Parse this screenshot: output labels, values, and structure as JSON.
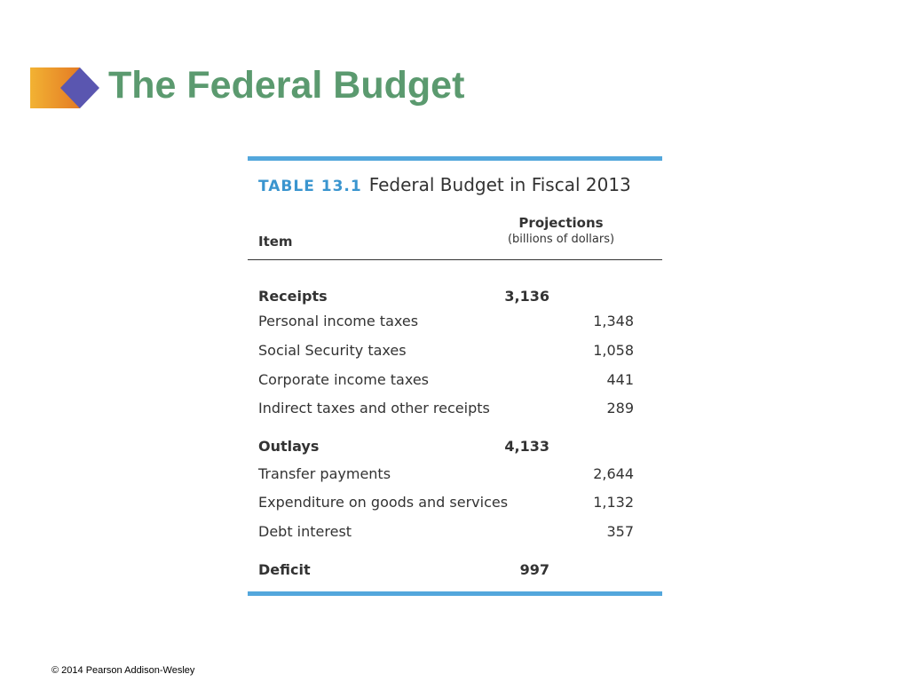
{
  "slide": {
    "title": "The Federal Budget",
    "accent_colors": {
      "title": "#5b9a6f",
      "table_bar": "#53a7dc",
      "logo_diamond": "#5a56b0",
      "logo_gradient_start": "#f2b233",
      "logo_gradient_end": "#e47b24"
    },
    "logo_icon": "orange-gradient-block-with-purple-diamond"
  },
  "table": {
    "label": "TABLE 13.1",
    "caption": "Federal Budget in Fiscal 2013",
    "col_item": "Item",
    "col_projections": "Projections",
    "col_units": "(billions of dollars)",
    "rows": [
      {
        "label": "Receipts",
        "value": "3,136"
      },
      {
        "label": "Personal income taxes",
        "value": "1,348"
      },
      {
        "label": "Social Security taxes",
        "value": "1,058"
      },
      {
        "label": "Corporate income taxes",
        "value": "441"
      },
      {
        "label": "Indirect taxes and other receipts",
        "value": "289"
      },
      {
        "label": "Outlays",
        "value": "4,133"
      },
      {
        "label": "Transfer payments",
        "value": "2,644"
      },
      {
        "label": "Expenditure on goods and services",
        "value": "1,132"
      },
      {
        "label": "Debt interest",
        "value": "357"
      },
      {
        "label": "Deficit",
        "value": "997"
      }
    ]
  },
  "footer": {
    "copyright": "© 2014 Pearson Addison-Wesley"
  }
}
